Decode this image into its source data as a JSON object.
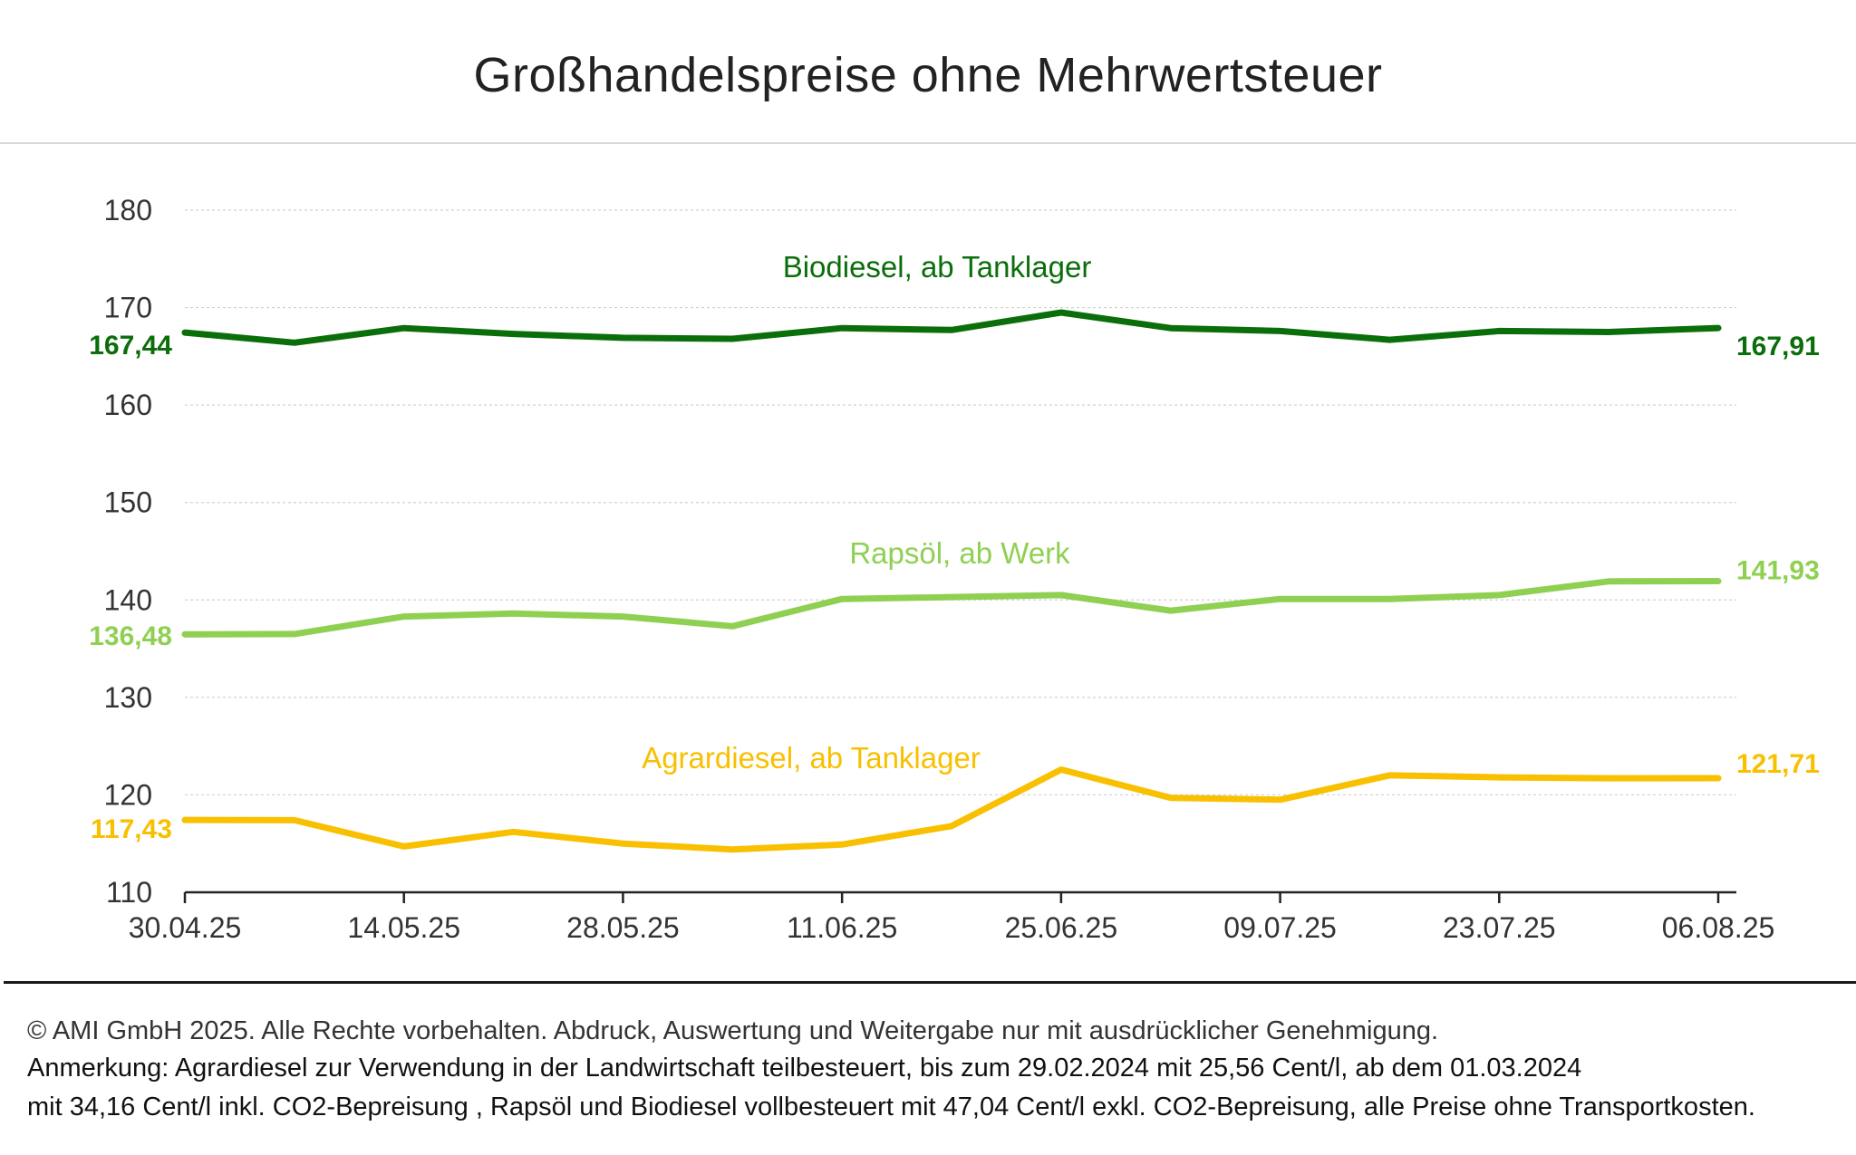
{
  "chart_data": {
    "type": "line",
    "title": "Großhandelspreise ohne Mehrwertsteuer",
    "xlabel": "",
    "ylabel": "",
    "ylim": [
      110,
      180
    ],
    "yticks": [
      "110",
      "120",
      "130",
      "140",
      "150",
      "160",
      "170",
      "180"
    ],
    "x": [
      "30.04.25",
      "07.05.25",
      "14.05.25",
      "21.05.25",
      "28.05.25",
      "04.06.25",
      "11.06.25",
      "18.06.25",
      "25.06.25",
      "02.07.25",
      "09.07.25",
      "16.07.25",
      "23.07.25",
      "30.07.25",
      "06.08.25"
    ],
    "xtick_labels": [
      "30.04.25",
      "14.05.25",
      "28.05.25",
      "11.06.25",
      "25.06.25",
      "09.07.25",
      "23.07.25",
      "06.08.25"
    ],
    "grid": true,
    "series": [
      {
        "name": "Biodiesel, ab Tanklager",
        "color": "#0a6e0a",
        "values": [
          167.44,
          166.4,
          167.9,
          167.3,
          166.9,
          166.8,
          167.9,
          167.7,
          169.5,
          167.9,
          167.6,
          166.7,
          167.6,
          167.5,
          167.91
        ],
        "start_label": "167,44",
        "end_label": "167,91"
      },
      {
        "name": "Rapsöl, ab Werk",
        "color": "#8fd053",
        "values": [
          136.48,
          136.5,
          138.3,
          138.6,
          138.3,
          137.3,
          140.1,
          140.3,
          140.5,
          138.9,
          140.1,
          140.1,
          140.5,
          141.9,
          141.93
        ],
        "start_label": "136,48",
        "end_label": "141,93"
      },
      {
        "name": "Agrardiesel, ab Tanklager",
        "color": "#f8c000",
        "values": [
          117.43,
          117.4,
          114.7,
          116.2,
          115.0,
          114.4,
          114.9,
          116.8,
          122.6,
          119.7,
          119.5,
          122.0,
          121.8,
          121.7,
          121.71
        ],
        "start_label": "117,43",
        "end_label": "121,71"
      }
    ]
  },
  "footer": {
    "copyright": "© AMI GmbH 2025.  Alle Rechte vorbehalten.  Abdruck, Auswertung und Weitergabe nur mit ausdrücklicher Genehmigung.",
    "note_line1": "Anmerkung: Agrardiesel zur Verwendung in der Landwirtschaft teilbesteuert, bis zum 29.02.2024 mit 25,56 Cent/l, ab dem 01.03.2024",
    "note_line2": "mit 34,16 Cent/l inkl. CO2-Bepreisung , Rapsöl und Biodiesel vollbesteuert mit 47,04 Cent/l exkl. CO2-Bepreisung, alle Preise ohne Transportkosten."
  }
}
